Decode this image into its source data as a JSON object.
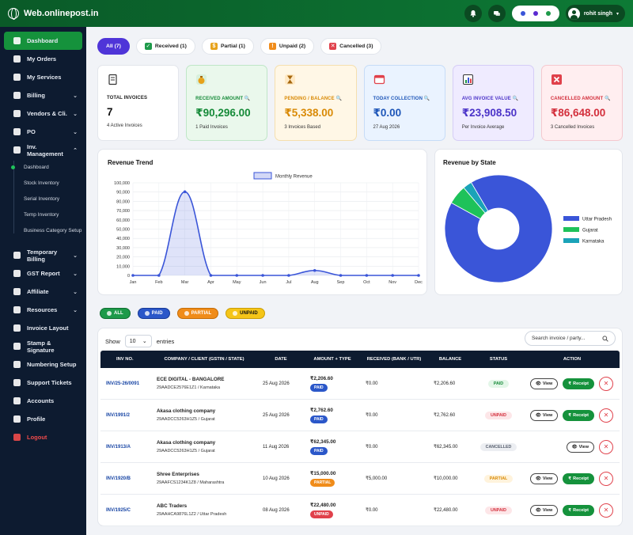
{
  "app": {
    "title": "Web.onlinepost.in"
  },
  "header": {
    "user_name": "rohit singh",
    "pill_colors": [
      "#3a55d8",
      "#5b2ad1",
      "#1e9a4a"
    ]
  },
  "sidebar": {
    "items": [
      {
        "label": "Dashboard",
        "icon": "home-icon",
        "active": true
      },
      {
        "label": "My Orders",
        "icon": "orders-icon"
      },
      {
        "label": "My Services",
        "icon": "services-icon"
      },
      {
        "label": "Billing",
        "icon": "billing-icon",
        "chevron": "down"
      },
      {
        "label": "Vendors & Cli.",
        "icon": "vendors-icon",
        "chevron": "down"
      },
      {
        "label": "PO",
        "icon": "po-icon",
        "chevron": "down"
      },
      {
        "label": "Inv. Management",
        "icon": "inventory-icon",
        "chevron": "up"
      }
    ],
    "submenu": [
      {
        "label": "Dashboard",
        "active": true
      },
      {
        "label": "Stock Inventory"
      },
      {
        "label": "Serial Inventory"
      },
      {
        "label": "Temp Inventory"
      },
      {
        "label": "Business Category Setup"
      }
    ],
    "items2": [
      {
        "label": "Temporary Billing",
        "icon": "temp-billing-icon",
        "chevron": "down"
      },
      {
        "label": "GST Report",
        "icon": "gst-icon",
        "chevron": "down"
      },
      {
        "label": "Affiliate",
        "icon": "affiliate-icon",
        "chevron": "down"
      },
      {
        "label": "Resources",
        "icon": "resources-icon",
        "chevron": "down"
      },
      {
        "label": "Invoice Layout",
        "icon": "layout-icon"
      },
      {
        "label": "Stamp & Signature",
        "icon": "stamp-icon"
      },
      {
        "label": "Numbering Setup",
        "icon": "numbering-icon"
      },
      {
        "label": "Support Tickets",
        "icon": "support-icon"
      },
      {
        "label": "Accounts",
        "icon": "accounts-icon"
      },
      {
        "label": "Profile",
        "icon": "profile-icon"
      },
      {
        "label": "Logout",
        "icon": "logout-icon",
        "logout": true
      }
    ]
  },
  "tabs": [
    {
      "label": "All (7)",
      "active": true
    },
    {
      "label": "Received (1)",
      "icon_color": "#1e9a4a"
    },
    {
      "label": "Partial (1)",
      "icon_color": "#e7a21a"
    },
    {
      "label": "Unpaid (2)",
      "icon_color": "#f08c1a"
    },
    {
      "label": "Cancelled (3)",
      "icon_color": "#e0414b"
    }
  ],
  "cards": [
    {
      "label": "TOTAL INVOICES",
      "value": "7",
      "sub": "4 Active Invoices",
      "bg": "#ffffff",
      "border": "#e3e6ec",
      "label_color": "#222222",
      "value_color": "#111111",
      "icon_color": "#3a3a3a"
    },
    {
      "label": "RECEIVED AMOUNT 🔍",
      "value": "₹90,296.00",
      "sub": "1 Paid Invoices",
      "bg": "#eaf8ec",
      "border": "#bfe6c7",
      "label_color": "#158a38",
      "value_color": "#158a38",
      "icon_color": "#1e9a4a"
    },
    {
      "label": "PENDING / BALANCE 🔍",
      "value": "₹5,338.00",
      "sub": "3 Invoices Based",
      "bg": "#fff7e6",
      "border": "#f5dfae",
      "label_color": "#d98a06",
      "value_color": "#d98a06",
      "icon_color": "#d98a06"
    },
    {
      "label": "TODAY COLLECTION 🔍",
      "value": "₹0.00",
      "sub": "27 Aug 2026",
      "bg": "#eaf3ff",
      "border": "#c6dcf7",
      "label_color": "#1e56b8",
      "value_color": "#1e56b8",
      "icon_color": "#e0414b"
    },
    {
      "label": "AVG INVOICE VALUE 🔍",
      "value": "₹23,908.50",
      "sub": "Per Invoice Average",
      "bg": "#efebff",
      "border": "#d5cdf6",
      "label_color": "#4b33c8",
      "value_color": "#4b33c8",
      "icon_color": "#1e9a4a"
    },
    {
      "label": "CANCELLED AMOUNT 🔍",
      "value": "₹86,648.00",
      "sub": "3 Cancelled Invoices",
      "bg": "#ffeef0",
      "border": "#f5c8ce",
      "label_color": "#d32f3c",
      "value_color": "#d32f3c",
      "icon_color": "#e0414b"
    }
  ],
  "revenue_trend": {
    "title": "Revenue Trend"
  },
  "revenue_state": {
    "title": "Revenue by State"
  },
  "chart_data": [
    {
      "type": "area",
      "title": "Revenue Trend",
      "series": [
        {
          "name": "Monthly Revenue",
          "values": [
            0,
            0,
            90296,
            0,
            0,
            0,
            0,
            5338,
            0,
            0,
            0,
            0
          ]
        }
      ],
      "categories": [
        "Jan",
        "Feb",
        "Mar",
        "Apr",
        "May",
        "Jun",
        "Jul",
        "Aug",
        "Sep",
        "Oct",
        "Nov",
        "Dec"
      ],
      "ylim": [
        0,
        100000
      ],
      "yticks": [
        "0",
        "10,000",
        "20,000",
        "30,000",
        "40,000",
        "50,000",
        "60,000",
        "70,000",
        "80,000",
        "90,000",
        "100,000"
      ],
      "grid": true,
      "legend": "top"
    },
    {
      "type": "pie",
      "title": "Revenue by State",
      "categories": [
        "Uttar Pradesh",
        "Gujarat",
        "Karnataka"
      ],
      "values": [
        91.5,
        5.8,
        2.7
      ],
      "colors": [
        "#3a55d8",
        "#1ec25a",
        "#1aa3b8"
      ],
      "legend": "right"
    }
  ],
  "filters": [
    {
      "label": "ALL",
      "bg": "#1e9a4a",
      "border": "#0f6e30",
      "color": "#ffffff"
    },
    {
      "label": "PAID",
      "bg": "#2b57c9",
      "border": "#173a96",
      "color": "#ffffff"
    },
    {
      "label": "PARTIAL",
      "bg": "#f08c1a",
      "border": "#c46c06",
      "color": "#ffffff"
    },
    {
      "label": "UNPAID",
      "bg": "#f5c518",
      "border": "#c99d06",
      "color": "#111111"
    }
  ],
  "table": {
    "show_label": "Show",
    "entries_value": "10",
    "entries_label": "entries",
    "search_placeholder": "Search invoice / party...",
    "headers": [
      "INV NO.",
      "COMPANY / CLIENT (GSTIN / STATE)",
      "DATE",
      "AMOUNT + TYPE",
      "RECEIVED (BANK / UTR)",
      "BALANCE",
      "STATUS",
      "ACTION"
    ],
    "view_label": "View",
    "receipt_label": "Receipt",
    "rows": [
      {
        "inv": "INV/25-26/0091",
        "company": "ECE DIGITAL - BANGALORE",
        "gst": "29AADCE2576E1Z1 / Karnataka",
        "date": "25 Aug 2026",
        "amount": "₹2,206.60",
        "type": "PAID",
        "type_color": "#2b57c9",
        "received": "₹0.00",
        "balance": "₹2,206.60",
        "status": "PAID",
        "status_bg": "#e3f6e8",
        "status_color": "#158a38",
        "receipt": true,
        "cancel": true
      },
      {
        "inv": "INV/1991/2",
        "company": "Akasa clothing company",
        "gst": "29AADCC5263H1Z5 / Gujarat",
        "date": "25 Aug 2026",
        "amount": "₹2,762.60",
        "type": "PAID",
        "type_color": "#2b57c9",
        "received": "₹0.00",
        "balance": "₹2,762.60",
        "status": "UNPAID",
        "status_bg": "#fde6e8",
        "status_color": "#d32f3c",
        "receipt": true,
        "cancel": true
      },
      {
        "inv": "INV/1913/A",
        "company": "Akasa clothing company",
        "gst": "29AADCC5263H1Z5 / Gujarat",
        "date": "11 Aug 2026",
        "amount": "₹62,345.00",
        "type": "PAID",
        "type_color": "#2b57c9",
        "received": "₹0.00",
        "balance": "₹62,345.00",
        "status": "CANCELLED",
        "status_bg": "#eceef2",
        "status_color": "#5a6270",
        "receipt": false,
        "cancel": true
      },
      {
        "inv": "INV/1920/B",
        "company": "Shree Enterprises",
        "gst": "29AAFCS1234K1Z8 / Maharashtra",
        "date": "10 Aug 2026",
        "amount": "₹15,000.00",
        "type": "PARTIAL",
        "type_color": "#f08c1a",
        "received": "₹5,000.00",
        "balance": "₹10,000.00",
        "status": "PARTIAL",
        "status_bg": "#fff3dc",
        "status_color": "#d98a06",
        "receipt": true,
        "cancel": true
      },
      {
        "inv": "INV/1925/C",
        "company": "ABC Traders",
        "gst": "29AAHCA9876L1Z2 / Uttar Pradesh",
        "date": "08 Aug 2026",
        "amount": "₹22,480.00",
        "type": "UNPAID",
        "type_color": "#e0414b",
        "received": "₹0.00",
        "balance": "₹22,480.00",
        "status": "UNPAID",
        "status_bg": "#fde6e8",
        "status_color": "#d32f3c",
        "receipt": true,
        "cancel": true
      }
    ]
  }
}
